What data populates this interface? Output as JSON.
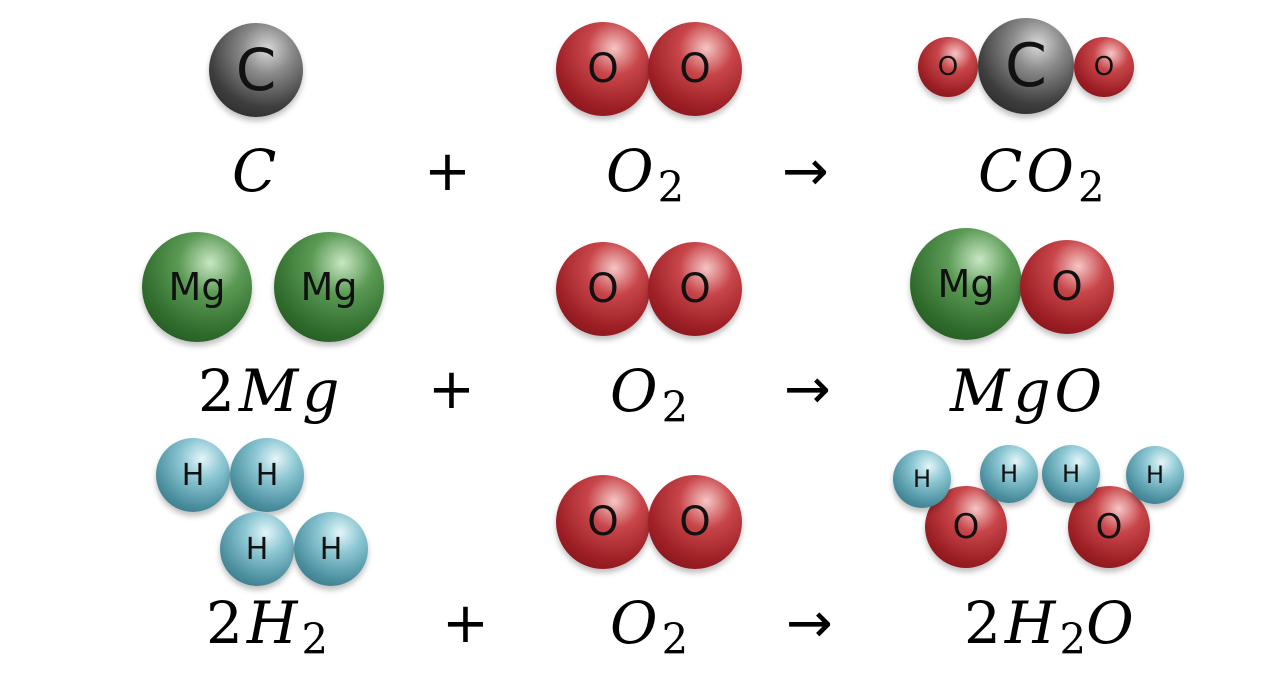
{
  "atoms": {
    "C": "C",
    "O": "O",
    "Mg": "Mg",
    "H": "H"
  },
  "operators": {
    "plus": "+",
    "arrow": "→"
  },
  "reactions": [
    {
      "reactant1": {
        "coef": "",
        "symbol": "C",
        "sub": ""
      },
      "reactant2": {
        "symbol": "O",
        "sub": "2"
      },
      "product": {
        "coef": "",
        "parts": [
          "C",
          "O"
        ],
        "subs": [
          "",
          "2"
        ]
      }
    },
    {
      "reactant1": {
        "coef": "2",
        "symbol": "Mg",
        "sub": ""
      },
      "reactant2": {
        "symbol": "O",
        "sub": "2"
      },
      "product": {
        "coef": "",
        "parts": [
          "Mg",
          "O"
        ],
        "subs": [
          "",
          ""
        ]
      }
    },
    {
      "reactant1": {
        "coef": "2",
        "symbol": "H",
        "sub": "2"
      },
      "reactant2": {
        "symbol": "O",
        "sub": "2"
      },
      "product": {
        "coef": "2",
        "parts": [
          "H",
          "O"
        ],
        "subs": [
          "2",
          ""
        ]
      }
    }
  ],
  "colors": {
    "carbon": "#3e3e3e",
    "oxygen": "#9b1e24",
    "magnesium": "#2f6b2b",
    "hydrogen": "#4b8f9f"
  }
}
